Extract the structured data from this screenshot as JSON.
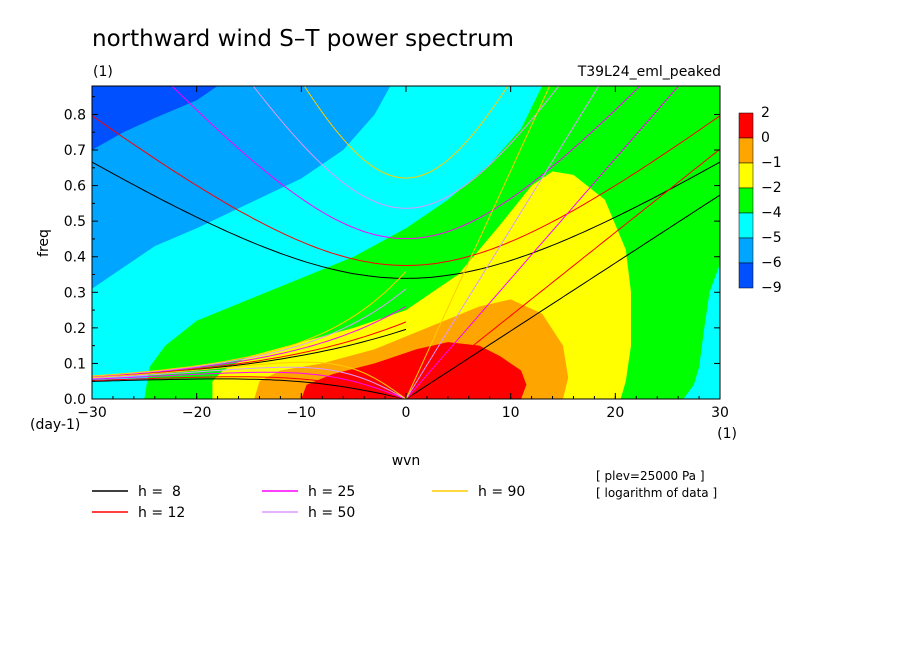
{
  "chart_data": {
    "type": "heatmap",
    "title": "northward wind S–T power spectrum",
    "subtitle_left": "(1)",
    "subtitle_right": "T39L24_eml_peaked",
    "xlabel": "wvn",
    "ylabel": "freq",
    "x_unit": "(1)",
    "y_unit": "(day-1)",
    "xlim": [
      -30,
      30
    ],
    "ylim": [
      0,
      0.88
    ],
    "xticks": [
      -30,
      -20,
      -10,
      0,
      10,
      20,
      30
    ],
    "yticks": [
      0.0,
      0.1,
      0.2,
      0.3,
      0.4,
      0.5,
      0.6,
      0.7,
      0.8
    ],
    "xtick_labels": [
      "−30",
      "−20",
      "−10",
      "0",
      "10",
      "20",
      "30"
    ],
    "ytick_labels": [
      "0.0",
      "0.1",
      "0.2",
      "0.3",
      "0.4",
      "0.5",
      "0.6",
      "0.7",
      "0.8"
    ],
    "colorbar": {
      "levels": [
        "2",
        "0",
        "−1",
        "−2",
        "−4",
        "−5",
        "−6",
        "−9"
      ],
      "colors": [
        "#ff0000",
        "#ffa500",
        "#ffff00",
        "#00ff00",
        "#00ffff",
        "#00a5ff",
        "#0050ff"
      ]
    },
    "annotations": [
      "[ plev=25000 Pa ]",
      "[ logarithm of data ]"
    ],
    "dispersion_curves": [
      {
        "label": "h =  8",
        "h": 8,
        "color": "#000000"
      },
      {
        "label": "h = 12",
        "h": 12,
        "color": "#ff0000"
      },
      {
        "label": "h = 25",
        "h": 25,
        "color": "#ff00ff"
      },
      {
        "label": "h = 50",
        "h": 50,
        "color": "#dd99ff"
      },
      {
        "label": "h = 90",
        "h": 90,
        "color": "#ffcc00"
      }
    ]
  }
}
